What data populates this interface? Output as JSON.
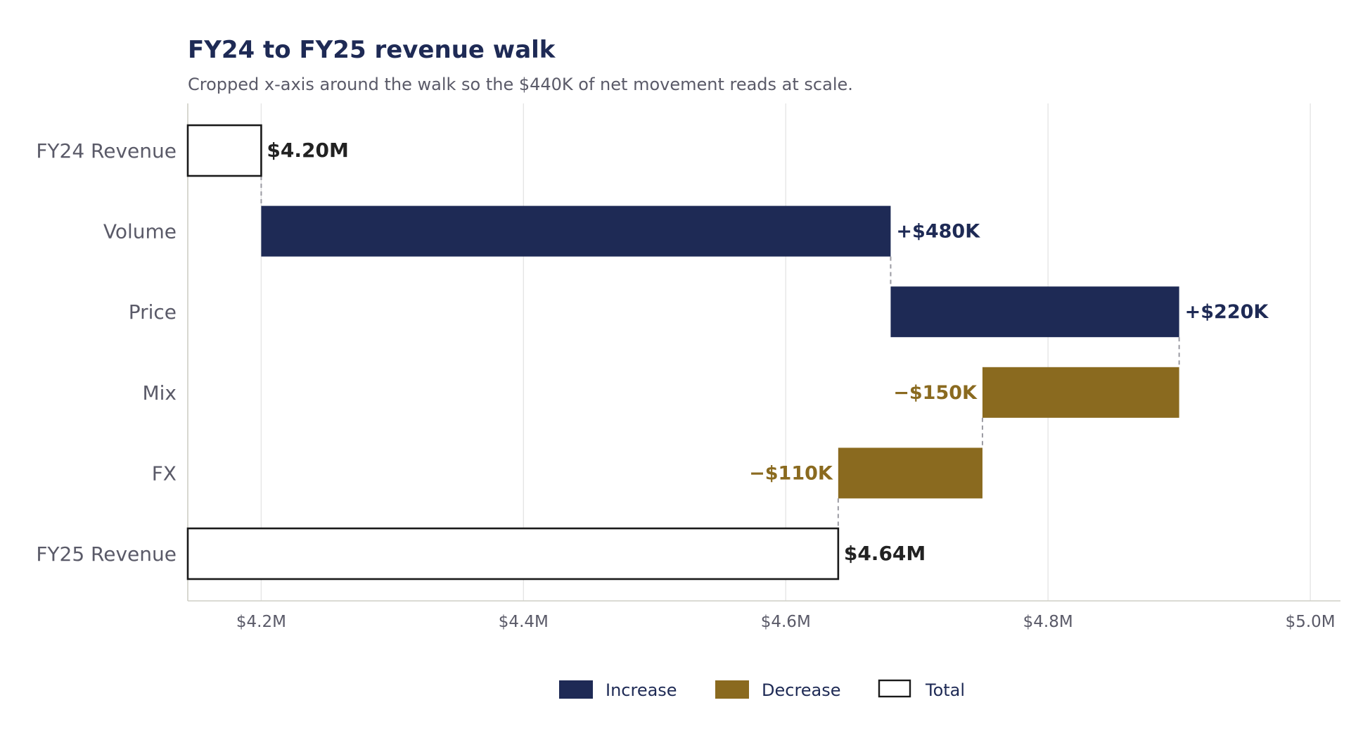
{
  "chart_data": {
    "type": "bar",
    "orientation": "horizontal",
    "variant": "waterfall",
    "title": "FY24 to FY25 revenue walk",
    "subtitle": "Cropped x-axis around the walk so the $440K of net movement reads at scale.",
    "xlabel": "",
    "ylabel": "",
    "xlim": [
      4.144,
      5.023
    ],
    "grid": "vertical",
    "legend_position": "bottom-center",
    "x_ticks": [
      {
        "value": 4.2,
        "label": "$4.2M"
      },
      {
        "value": 4.4,
        "label": "$4.4M"
      },
      {
        "value": 4.6,
        "label": "$4.6M"
      },
      {
        "value": 4.8,
        "label": "$4.8M"
      },
      {
        "value": 5.0,
        "label": "$5.0M"
      }
    ],
    "steps": [
      {
        "category": "FY24 Revenue",
        "kind": "total",
        "start": 0,
        "end": 4.2,
        "label": "$4.20M"
      },
      {
        "category": "Volume",
        "kind": "increase",
        "start": 4.2,
        "end": 4.68,
        "label": "+$480K"
      },
      {
        "category": "Price",
        "kind": "increase",
        "start": 4.68,
        "end": 4.9,
        "label": "+$220K"
      },
      {
        "category": "Mix",
        "kind": "decrease",
        "start": 4.9,
        "end": 4.75,
        "label": "−$150K"
      },
      {
        "category": "FX",
        "kind": "decrease",
        "start": 4.75,
        "end": 4.64,
        "label": "−$110K"
      },
      {
        "category": "FY25 Revenue",
        "kind": "total",
        "start": 0,
        "end": 4.64,
        "label": "$4.64M"
      }
    ],
    "legend": [
      {
        "key": "increase",
        "label": "Increase"
      },
      {
        "key": "decrease",
        "label": "Decrease"
      },
      {
        "key": "total",
        "label": "Total"
      }
    ]
  },
  "colors": {
    "increase": "#1e2a55",
    "decrease": "#8a6a1f",
    "total_fill": "#ffffff",
    "total_stroke": "#1a1a1a",
    "total_label": "#222222",
    "title": "#1e2a55",
    "subtitle": "#5a5a68",
    "axis_text": "#5a5a68",
    "grid": "#e4e4e4",
    "axis_line": "#cfcfc5",
    "connector": "#9a9aa2",
    "legend_text": "#1e2a55"
  }
}
